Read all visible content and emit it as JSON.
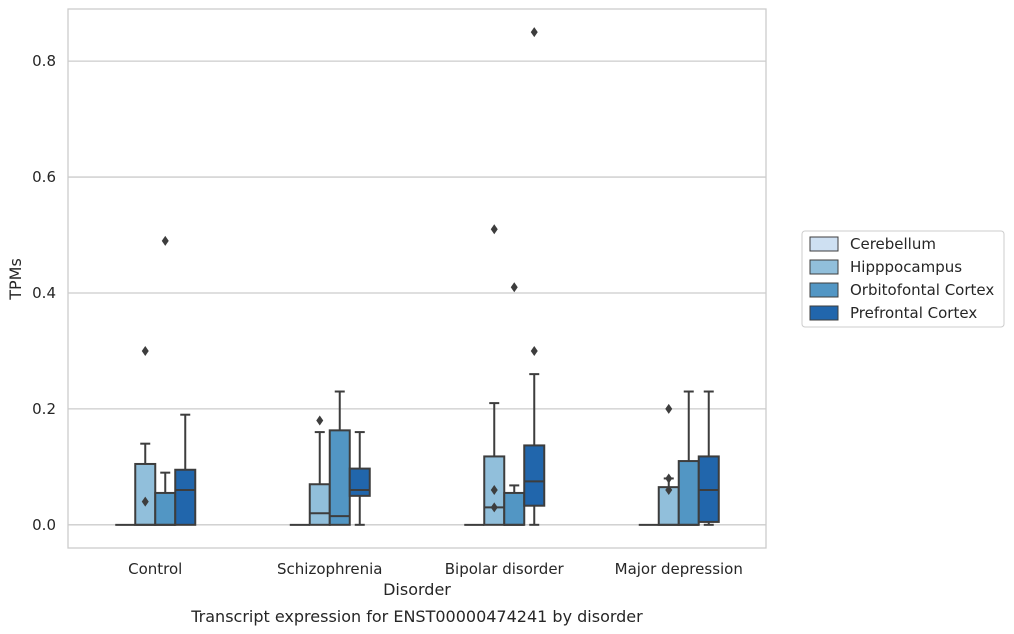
{
  "chart_data": {
    "type": "box",
    "title": "",
    "caption": "Transcript expression for ENST00000474241 by disorder",
    "xlabel": "Disorder",
    "ylabel": "TPMs",
    "ylim": [
      -0.04,
      0.89
    ],
    "yticks": [
      0.0,
      0.2,
      0.4,
      0.6,
      0.8
    ],
    "ytick_labels": [
      "0.0",
      "0.2",
      "0.4",
      "0.6",
      "0.8"
    ],
    "grid": true,
    "legend_position": "right",
    "categories": [
      "Control",
      "Schizophrenia",
      "Bipolar disorder",
      "Major depression"
    ],
    "series": [
      {
        "name": "Cerebellum",
        "color": "#cee0f2",
        "boxes": [
          {
            "q1": 0,
            "median": 0,
            "q3": 0,
            "whisker_low": 0,
            "whisker_high": 0,
            "outliers": []
          },
          {
            "q1": 0,
            "median": 0,
            "q3": 0,
            "whisker_low": 0,
            "whisker_high": 0,
            "outliers": []
          },
          {
            "q1": 0,
            "median": 0,
            "q3": 0,
            "whisker_low": 0,
            "whisker_high": 0,
            "outliers": []
          },
          {
            "q1": 0,
            "median": 0,
            "q3": 0,
            "whisker_low": 0,
            "whisker_high": 0,
            "outliers": []
          }
        ]
      },
      {
        "name": "Hipppocampus",
        "color": "#91bfdb",
        "boxes": [
          {
            "q1": 0,
            "median": 0,
            "q3": 0.105,
            "whisker_low": 0,
            "whisker_high": 0.14,
            "outliers": [
              0.04,
              0.3
            ]
          },
          {
            "q1": 0,
            "median": 0.02,
            "q3": 0.07,
            "whisker_low": 0,
            "whisker_high": 0.16,
            "outliers": [
              0.18
            ]
          },
          {
            "q1": 0,
            "median": 0.03,
            "q3": 0.118,
            "whisker_low": 0,
            "whisker_high": 0.21,
            "outliers": [
              0.03,
              0.06,
              0.51
            ]
          },
          {
            "q1": 0,
            "median": 0,
            "q3": 0.065,
            "whisker_low": 0,
            "whisker_high": 0.08,
            "outliers": [
              0.06,
              0.08,
              0.2
            ]
          }
        ]
      },
      {
        "name": "Orbitofontal Cortex",
        "color": "#5296c4",
        "boxes": [
          {
            "q1": 0,
            "median": 0,
            "q3": 0.055,
            "whisker_low": 0,
            "whisker_high": 0.09,
            "outliers": [
              0.49
            ]
          },
          {
            "q1": 0,
            "median": 0.015,
            "q3": 0.163,
            "whisker_low": 0,
            "whisker_high": 0.23,
            "outliers": []
          },
          {
            "q1": 0,
            "median": 0,
            "q3": 0.055,
            "whisker_low": 0,
            "whisker_high": 0.068,
            "outliers": [
              0.41
            ]
          },
          {
            "q1": 0,
            "median": 0,
            "q3": 0.11,
            "whisker_low": 0,
            "whisker_high": 0.23,
            "outliers": []
          }
        ]
      },
      {
        "name": "Prefrontal Cortex",
        "color": "#2166ac",
        "boxes": [
          {
            "q1": 0,
            "median": 0.06,
            "q3": 0.095,
            "whisker_low": 0,
            "whisker_high": 0.19,
            "outliers": []
          },
          {
            "q1": 0.05,
            "median": 0.06,
            "q3": 0.097,
            "whisker_low": 0,
            "whisker_high": 0.16,
            "outliers": []
          },
          {
            "q1": 0.033,
            "median": 0.075,
            "q3": 0.137,
            "whisker_low": 0,
            "whisker_high": 0.26,
            "outliers": [
              0.3,
              0.85
            ]
          },
          {
            "q1": 0.005,
            "median": 0.06,
            "q3": 0.118,
            "whisker_low": 0,
            "whisker_high": 0.23,
            "outliers": []
          }
        ]
      }
    ]
  }
}
